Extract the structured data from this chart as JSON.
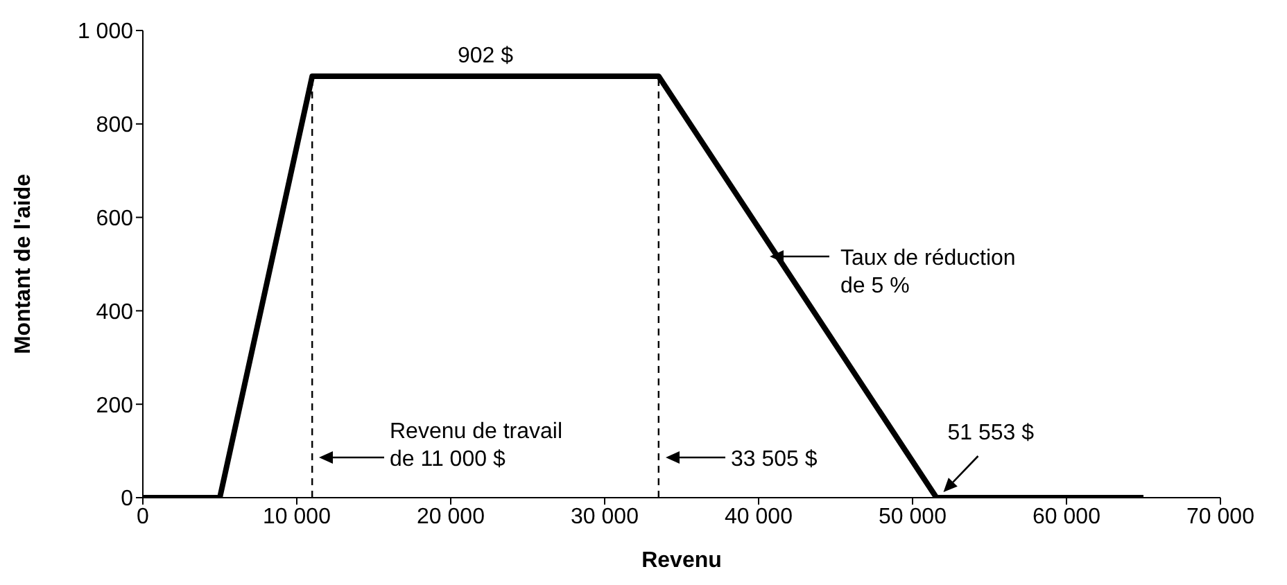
{
  "chart_data": {
    "type": "line",
    "xlabel": "Revenu",
    "ylabel": "Montant de l'aide",
    "x": [
      0,
      5000,
      11000,
      33505,
      51553,
      65000
    ],
    "series": [
      {
        "color": "#000000",
        "values": [
          0,
          0,
          902,
          902,
          0,
          0
        ]
      }
    ],
    "xlim": [
      0,
      70000
    ],
    "xticks": [
      0,
      {
        "value": 10000,
        "label": "10 000"
      },
      {
        "value": 20000,
        "label": "20 000"
      },
      {
        "value": 30000,
        "label": "30 000"
      },
      {
        "value": 40000,
        "label": "40 000"
      },
      {
        "value": 50000,
        "label": "50 000"
      },
      {
        "value": 60000,
        "label": "60 000"
      },
      {
        "value": 70000,
        "label": "70 000"
      }
    ],
    "ylim": [
      0,
      1000
    ],
    "yticks": [
      0,
      200,
      400,
      600,
      800,
      {
        "value": 1000,
        "label": "1 000"
      }
    ],
    "ref_lines": [
      {
        "axis": "x",
        "value": 11000,
        "line_style": "dashed",
        "color": "#000000"
      },
      {
        "axis": "x",
        "value": 33505,
        "line_style": "dashed",
        "color": "#000000"
      }
    ],
    "annotations": [
      {
        "text": "902 $",
        "x": 22250,
        "y": 902
      },
      "Revenu de travail\nde 11 000 $",
      "33 505 $",
      "Taux de réduction\nde 5 %",
      {
        "text": "51 553 $",
        "x": 51553,
        "y": 0
      }
    ],
    "marker": "none",
    "line_style": "solid"
  }
}
